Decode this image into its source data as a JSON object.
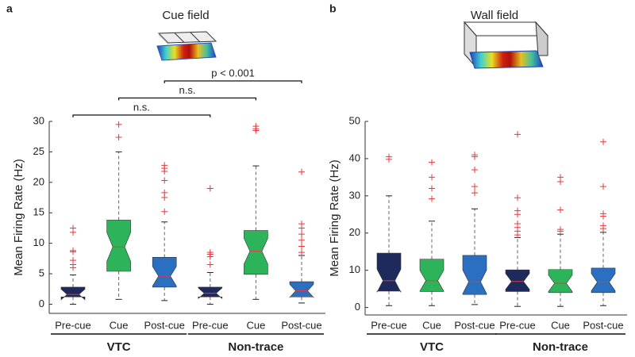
{
  "chart_data": [
    {
      "type": "box",
      "panel_label": "a",
      "title": "Cue field",
      "y_label": "Mean Firing Rate (Hz)",
      "ylim": [
        -1.5,
        30
      ],
      "yticks": [
        0,
        5,
        10,
        15,
        20,
        25,
        30
      ],
      "flier_color": "#e8383d",
      "groups": [
        {
          "name": "VTC",
          "color": "#5b3a96",
          "categories": [
            "Pre-cue",
            "Cue",
            "Post-cue"
          ],
          "boxes": [
            {
              "color": "#1f2a5c",
              "whislo": 0,
              "q1": 1.2,
              "med": 1.6,
              "q3": 2.8,
              "whishi": 4.8,
              "fliers": [
                12.5,
                11.8,
                8.8,
                8.6,
                7.2,
                6.5,
                6.0
              ]
            },
            {
              "color": "#2db45a",
              "whislo": 0.8,
              "q1": 5.4,
              "med": 9.4,
              "q3": 13.8,
              "whishi": 25,
              "fliers": [
                29.5,
                27.4
              ]
            },
            {
              "color": "#2a6fc0",
              "whislo": 0.6,
              "q1": 2.8,
              "med": 4.6,
              "q3": 7.7,
              "whishi": 13.5,
              "fliers": [
                22.8,
                22.3,
                21.8,
                20.3,
                18.3,
                17.5,
                15.2
              ]
            }
          ]
        },
        {
          "name": "Non-trace",
          "color": "#f5b800",
          "categories": [
            "Pre-cue",
            "Cue",
            "Post-cue"
          ],
          "boxes": [
            {
              "color": "#1f2a5c",
              "whislo": 0,
              "q1": 1.2,
              "med": 1.8,
              "q3": 2.8,
              "whishi": 5.2,
              "fliers": [
                19,
                8.5,
                8.2,
                7.8,
                6.5
              ]
            },
            {
              "color": "#2db45a",
              "whislo": 0.8,
              "q1": 4.9,
              "med": 8.7,
              "q3": 12.1,
              "whishi": 22.7,
              "fliers": [
                29.2,
                28.8,
                28.5
              ]
            },
            {
              "color": "#2a6fc0",
              "whislo": 0.2,
              "q1": 1.2,
              "med": 2.2,
              "q3": 3.7,
              "whishi": 8,
              "fliers": [
                21.7,
                13.2,
                12.5,
                11.5,
                10.5,
                9.5,
                8.5
              ]
            }
          ]
        }
      ],
      "comparisons": [
        {
          "label": "n.s.",
          "from": [
            0,
            0
          ],
          "to": [
            1,
            0
          ]
        },
        {
          "label": "n.s.",
          "from": [
            0,
            1
          ],
          "to": [
            1,
            1
          ]
        },
        {
          "label": "p < 0.001",
          "from": [
            0,
            2
          ],
          "to": [
            1,
            2
          ]
        }
      ]
    },
    {
      "type": "box",
      "panel_label": "b",
      "title": "Wall field",
      "y_label": "Mean Firing Rate (Hz)",
      "ylim": [
        -2,
        50
      ],
      "yticks": [
        0,
        10,
        20,
        30,
        40,
        50
      ],
      "flier_color": "#e8383d",
      "groups": [
        {
          "name": "VTC",
          "color": "#5b3a96",
          "categories": [
            "Pre-cue",
            "Cue",
            "Post-cue"
          ],
          "boxes": [
            {
              "color": "#1f2a5c",
              "whislo": 0.5,
              "q1": 4.4,
              "med": 7.2,
              "q3": 14.6,
              "whishi": 30,
              "fliers": [
                40.5,
                39.8
              ]
            },
            {
              "color": "#2db45a",
              "whislo": 0.5,
              "q1": 4.3,
              "med": 7.2,
              "q3": 13,
              "whishi": 23.2,
              "fliers": [
                39,
                35,
                32,
                29.2
              ]
            },
            {
              "color": "#2a6fc0",
              "whislo": 0.8,
              "q1": 3.5,
              "med": 6.9,
              "q3": 14,
              "whishi": 26.5,
              "fliers": [
                41,
                40.5,
                37,
                32.5,
                30.8
              ]
            }
          ]
        },
        {
          "name": "Non-trace",
          "color": "#f5b800",
          "categories": [
            "Pre-cue",
            "Cue",
            "Post-cue"
          ],
          "boxes": [
            {
              "color": "#1f2a5c",
              "whislo": 0.3,
              "q1": 4.3,
              "med": 7.0,
              "q3": 10.1,
              "whishi": 18.8,
              "fliers": [
                46.5,
                29.5,
                26,
                25,
                22.5,
                21.5,
                20.5,
                19.5
              ]
            },
            {
              "color": "#2db45a",
              "whislo": 0.3,
              "q1": 4.0,
              "med": 6.5,
              "q3": 10.2,
              "whishi": 19.7,
              "fliers": [
                35,
                33.8,
                26.2,
                21,
                20.5
              ]
            },
            {
              "color": "#2a6fc0",
              "whislo": 0.5,
              "q1": 4.0,
              "med": 6.8,
              "q3": 10.6,
              "whishi": 20.2,
              "fliers": [
                44.5,
                32.5,
                25.2,
                24.5,
                22,
                21.2
              ]
            }
          ]
        }
      ]
    }
  ]
}
